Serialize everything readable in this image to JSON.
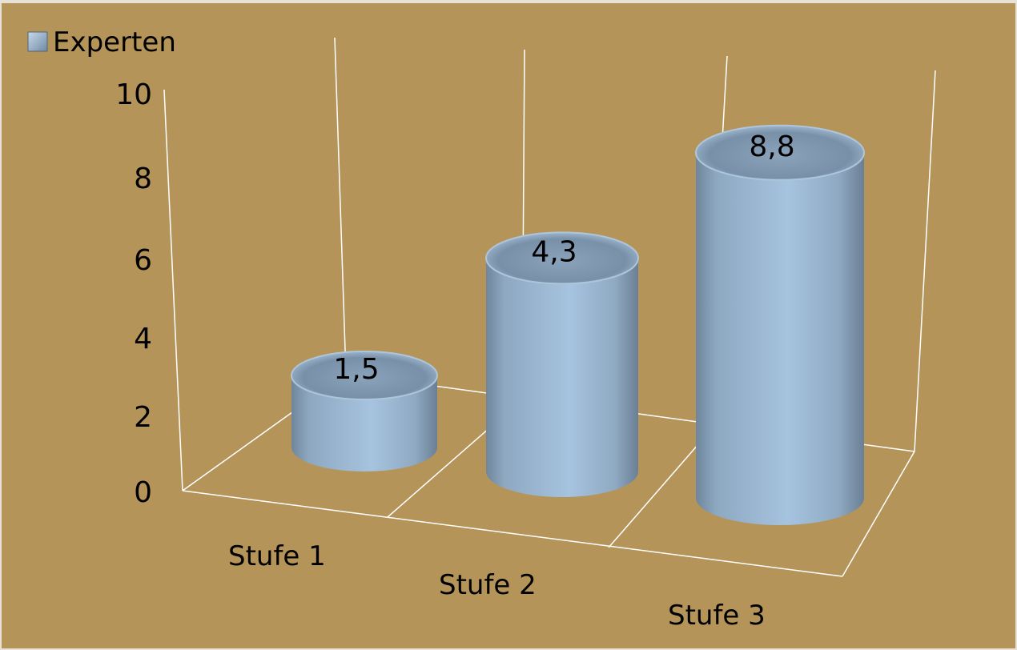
{
  "chart_data": {
    "type": "bar",
    "style": "3d-cylinder",
    "categories": [
      "Stufe 1",
      "Stufe 2",
      "Stufe 3"
    ],
    "series": [
      {
        "name": "Experten",
        "values": [
          1.5,
          4.3,
          8.8
        ]
      }
    ],
    "data_labels": [
      "1,5",
      "4,3",
      "8,8"
    ],
    "y_ticks": [
      "0",
      "2",
      "4",
      "6",
      "8",
      "10"
    ],
    "ylim": [
      0,
      10
    ],
    "grid": true,
    "legend": {
      "position": "top-left",
      "entries": [
        "Experten"
      ]
    },
    "colors": {
      "background": "#b59459",
      "bar": "#9dbbd8",
      "bar_top": "#7d95ad",
      "grid": "#ffffff",
      "text": "#000000"
    }
  }
}
